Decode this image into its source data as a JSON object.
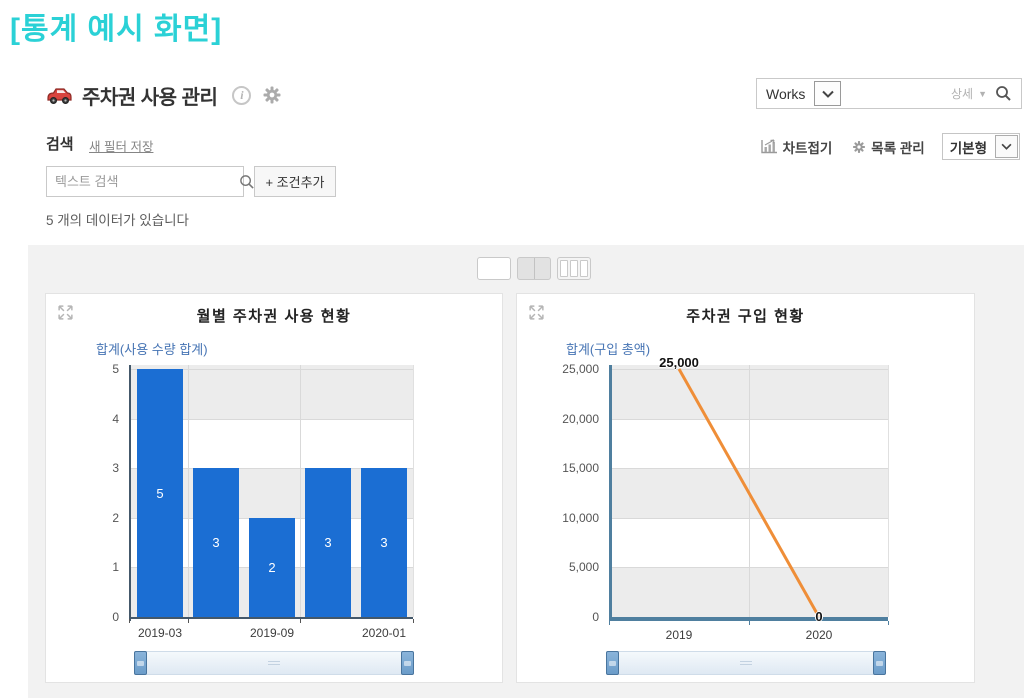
{
  "page_title": "[통계 예시 화면]",
  "header": {
    "app_title": "주차권 사용 관리",
    "works_label": "Works",
    "detail_label": "상세"
  },
  "toolbar": {
    "search_label": "검색",
    "save_filter_label": "새 필터 저장",
    "chart_fold_label": "차트접기",
    "list_manage_label": "목록 관리",
    "view_type_value": "기본형"
  },
  "filter": {
    "search_placeholder": "텍스트 검색",
    "add_condition_label": "+ 조건추가",
    "result_count_text": "5 개의 데이터가 있습니다"
  },
  "colors": {
    "accent_cyan": "#2bd1d6",
    "bar_blue": "#1b6ed3",
    "line_orange": "#ef8e38",
    "legend_blue": "#4674b4",
    "axis_blue": "#4f7f9f",
    "band_gray": "#ececec",
    "car_red": "#d9443e"
  },
  "chart_data": [
    {
      "type": "bar",
      "title": "월별 주차권 사용 현황",
      "series_label": "합계(사용 수량 합계)",
      "values": [
        5,
        3,
        2,
        3,
        3
      ],
      "bar_labels": [
        "5",
        "3",
        "2",
        "3",
        "3"
      ],
      "x_tick_labels": [
        "2019-03",
        "2019-09",
        "2020-01"
      ],
      "x_label_bar_index": [
        0,
        2,
        4
      ],
      "y_ticks": [
        "5",
        "4",
        "3",
        "2",
        "1",
        "0"
      ],
      "ylim": [
        0,
        5
      ],
      "grid": "horizontal-bands",
      "legend_position": "top-left"
    },
    {
      "type": "line",
      "title": "주차권 구입 현황",
      "series_label": "합계(구입 총액)",
      "x": [
        "2019",
        "2020"
      ],
      "values": [
        25000,
        0
      ],
      "point_labels": [
        "25,000",
        "0"
      ],
      "y_ticks": [
        "25,000",
        "20,000",
        "15,000",
        "10,000",
        "5,000",
        "0"
      ],
      "ylim": [
        0,
        25000
      ],
      "grid": "horizontal-bands",
      "legend_position": "top-left"
    }
  ]
}
